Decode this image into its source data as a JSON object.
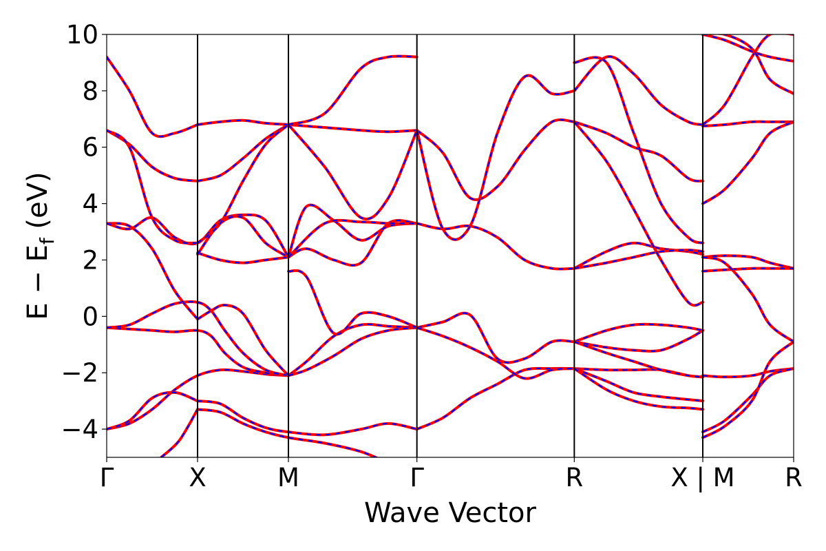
{
  "chart_data": {
    "type": "line",
    "title": "",
    "xlabel": "Wave Vector",
    "ylabel_parts": {
      "main": "E − E",
      "subscript": "f",
      "unit": " (eV)"
    },
    "ylim": [
      -5,
      10
    ],
    "yticks": [
      -4,
      -2,
      0,
      2,
      4,
      6,
      8,
      10
    ],
    "ytick_labels": [
      "−4",
      "−2",
      "0",
      "2",
      "4",
      "6",
      "8",
      "10"
    ],
    "x_ticks": [
      {
        "pos": 0.0,
        "label": "Γ"
      },
      {
        "pos": 1.0,
        "label": "X"
      },
      {
        "pos": 2.0,
        "label": "M"
      },
      {
        "pos": 3.414,
        "label": "Γ"
      },
      {
        "pos": 5.146,
        "label": "R"
      },
      {
        "pos": 6.56,
        "label": "X | M"
      },
      {
        "pos": 7.56,
        "label": "R"
      }
    ],
    "xlim": [
      0,
      7.56
    ],
    "grid": false,
    "colors": {
      "series_a": "#ff0000",
      "series_b": "#0000ff",
      "kpath_lines": "#000000"
    },
    "series": [
      {
        "values_note": "bands",
        "x": [
          0,
          0.25,
          0.5,
          0.75,
          1.0,
          1.25,
          1.5,
          1.75,
          2.0
        ],
        "y": [
          -4.0,
          -3.8,
          -3.3,
          -2.6,
          -2.1,
          -1.9,
          -1.95,
          -2.05,
          -2.1
        ]
      },
      {
        "x": [
          0,
          0.25,
          0.5,
          0.75,
          1.0
        ],
        "y": [
          -4.0,
          -3.7,
          -2.9,
          -2.7,
          -3.0
        ]
      },
      {
        "x": [
          1.0,
          1.25,
          1.5,
          1.75,
          2.0,
          2.4,
          2.8,
          3.1,
          3.414
        ],
        "y": [
          -3.0,
          -3.1,
          -3.6,
          -3.95,
          -4.1,
          -4.2,
          -4.0,
          -3.8,
          -4.0
        ]
      },
      {
        "x": [
          1.0,
          1.25,
          1.5,
          1.75,
          2.0,
          2.4,
          2.8,
          3.1,
          3.414
        ],
        "y": [
          -3.3,
          -3.4,
          -3.8,
          -4.1,
          -4.3,
          -4.5,
          -4.8,
          -5.2,
          -5.6
        ]
      },
      {
        "x": [
          0.6,
          0.8,
          1.0
        ],
        "y": [
          -5.0,
          -4.4,
          -3.3
        ]
      },
      {
        "x": [
          3.414,
          3.7,
          4.0,
          4.3,
          4.6,
          4.9,
          5.146
        ],
        "y": [
          -4.0,
          -3.6,
          -2.9,
          -2.4,
          -1.9,
          -1.85,
          -1.85
        ]
      },
      {
        "x": [
          0,
          0.25,
          0.5,
          0.75,
          1.0,
          1.15,
          1.3,
          1.5,
          1.75,
          2.0
        ],
        "y": [
          -0.4,
          -0.45,
          -0.5,
          -0.55,
          -0.5,
          -0.7,
          -1.3,
          -1.8,
          -2.0,
          -2.1
        ]
      },
      {
        "x": [
          0,
          0.25,
          0.5,
          0.75,
          1.0,
          1.15,
          1.3,
          1.5,
          1.75,
          2.0
        ],
        "y": [
          -0.4,
          -0.3,
          0.1,
          0.45,
          0.5,
          0.2,
          -0.5,
          -1.3,
          -1.9,
          -2.1
        ]
      },
      {
        "x": [
          0,
          0.25,
          0.5,
          0.75,
          1.0
        ],
        "y": [
          3.3,
          3.2,
          2.4,
          0.9,
          -0.1
        ]
      },
      {
        "x": [
          1.0,
          1.15,
          1.3,
          1.5,
          1.75,
          2.0
        ],
        "y": [
          -0.1,
          0.2,
          0.4,
          0.1,
          -1.2,
          -2.1
        ]
      },
      {
        "x": [
          2.0,
          2.2,
          2.5,
          2.8,
          3.1,
          3.414
        ],
        "y": [
          -2.1,
          -1.6,
          -0.7,
          -0.3,
          -0.35,
          -0.4
        ]
      },
      {
        "x": [
          2.0,
          2.2,
          2.5,
          2.8,
          3.1,
          3.414
        ],
        "y": [
          -2.1,
          -1.9,
          -1.4,
          -0.8,
          -0.5,
          -0.4
        ]
      },
      {
        "x": [
          2.0,
          2.2,
          2.5,
          2.8,
          3.1,
          3.414
        ],
        "y": [
          1.6,
          1.4,
          -0.6,
          0.1,
          0.0,
          -0.4
        ]
      },
      {
        "x": [
          3.414,
          3.7,
          4.0,
          4.3,
          4.6,
          4.9,
          5.146
        ],
        "y": [
          -0.4,
          -0.2,
          0.05,
          -1.5,
          -1.5,
          -0.9,
          -0.9
        ]
      },
      {
        "x": [
          3.414,
          3.7,
          4.0,
          4.3,
          4.6,
          4.9,
          5.146
        ],
        "y": [
          -0.4,
          -0.7,
          -1.1,
          -1.6,
          -2.2,
          -1.9,
          -1.85
        ]
      },
      {
        "x": [
          5.146,
          5.5,
          5.8,
          6.1,
          6.4,
          6.56
        ],
        "y": [
          -0.9,
          -0.5,
          -0.3,
          -0.3,
          -0.4,
          -0.5
        ]
      },
      {
        "x": [
          5.146,
          5.5,
          5.8,
          6.1,
          6.4,
          6.56
        ],
        "y": [
          -0.9,
          -1.1,
          -1.2,
          -1.2,
          -0.8,
          -0.5
        ]
      },
      {
        "x": [
          5.146,
          5.5,
          5.8,
          6.1,
          6.4,
          6.56
        ],
        "y": [
          -1.85,
          -1.9,
          -1.9,
          -1.9,
          -2.1,
          -2.15
        ]
      },
      {
        "x": [
          5.146,
          5.5,
          5.8,
          6.1,
          6.4,
          6.56
        ],
        "y": [
          -1.85,
          -2.3,
          -2.7,
          -2.85,
          -2.95,
          -3.0
        ]
      },
      {
        "x": [
          5.146,
          5.5,
          5.8,
          6.1,
          6.4,
          6.56
        ],
        "y": [
          -1.85,
          -2.6,
          -3.0,
          -3.2,
          -3.25,
          -3.3
        ]
      },
      {
        "x": [
          5.146,
          5.5,
          5.8,
          6.1,
          6.4,
          6.56
        ],
        "y": [
          -0.9,
          -1.3,
          -1.6,
          -1.9,
          -2.1,
          -2.15
        ]
      },
      {
        "x": [
          0,
          0.25,
          0.5,
          0.75,
          1.0,
          1.25,
          1.5,
          1.75,
          2.0
        ],
        "y": [
          3.3,
          3.1,
          3.5,
          2.8,
          2.6,
          3.4,
          3.6,
          3.4,
          2.1
        ]
      },
      {
        "x": [
          1.0,
          1.25,
          1.5,
          1.75,
          2.0
        ],
        "y": [
          2.25,
          2.0,
          1.9,
          2.0,
          2.1
        ]
      },
      {
        "x": [
          1.0,
          1.25,
          1.5,
          1.75,
          2.0
        ],
        "y": [
          2.2,
          3.3,
          3.5,
          2.6,
          2.1
        ]
      },
      {
        "x": [
          2.0,
          2.2,
          2.5,
          2.8,
          3.1,
          3.414
        ],
        "y": [
          2.1,
          2.4,
          2.0,
          1.9,
          3.3,
          3.3
        ]
      },
      {
        "x": [
          2.0,
          2.2,
          2.5,
          2.8,
          3.1,
          3.414
        ],
        "y": [
          2.1,
          3.9,
          3.4,
          2.7,
          3.2,
          3.3
        ]
      },
      {
        "x": [
          2.0,
          2.4,
          2.8,
          3.1,
          3.414
        ],
        "y": [
          2.1,
          3.3,
          3.35,
          3.3,
          3.3
        ]
      },
      {
        "x": [
          3.414,
          3.7,
          4.0,
          4.3,
          4.6,
          4.9,
          5.146
        ],
        "y": [
          3.3,
          3.1,
          3.2,
          2.8,
          2.0,
          1.7,
          1.7
        ]
      },
      {
        "x": [
          5.146,
          5.5,
          5.8,
          6.1,
          6.4,
          6.56
        ],
        "y": [
          1.7,
          2.3,
          2.6,
          2.4,
          2.3,
          2.2
        ]
      },
      {
        "x": [
          5.146,
          5.5,
          5.8,
          6.1,
          6.4,
          6.56
        ],
        "y": [
          1.7,
          1.9,
          2.1,
          2.3,
          2.35,
          2.3
        ]
      },
      {
        "x": [
          0,
          0.25,
          0.5,
          0.75,
          1.0
        ],
        "y": [
          6.6,
          6.1,
          5.3,
          4.9,
          4.8
        ]
      },
      {
        "x": [
          0,
          0.25,
          0.5,
          0.75,
          1.0
        ],
        "y": [
          6.6,
          6.0,
          3.5,
          2.7,
          2.6
        ]
      },
      {
        "x": [
          1.0,
          1.25,
          1.5,
          1.75,
          2.0
        ],
        "y": [
          4.8,
          5.0,
          5.6,
          6.3,
          6.8
        ]
      },
      {
        "x": [
          1.0,
          1.25,
          1.5,
          1.75,
          2.0
        ],
        "y": [
          2.6,
          3.3,
          4.8,
          6.1,
          6.8
        ]
      },
      {
        "x": [
          0,
          0.25,
          0.5,
          0.75,
          1.0
        ],
        "y": [
          9.2,
          8.0,
          6.5,
          6.5,
          6.8
        ]
      },
      {
        "x": [
          1.0,
          1.25,
          1.5,
          1.75,
          2.0
        ],
        "y": [
          6.8,
          6.9,
          6.95,
          6.85,
          6.8
        ]
      },
      {
        "x": [
          2.0,
          2.4,
          2.8,
          3.1,
          3.414
        ],
        "y": [
          6.8,
          6.7,
          6.6,
          6.55,
          6.6
        ]
      },
      {
        "x": [
          2.0,
          2.4,
          2.8,
          3.1,
          3.414
        ],
        "y": [
          6.8,
          5.3,
          3.5,
          4.2,
          6.6
        ]
      },
      {
        "x": [
          2.0,
          2.4,
          2.8,
          3.1,
          3.414
        ],
        "y": [
          6.8,
          7.2,
          8.8,
          9.2,
          9.2
        ]
      },
      {
        "x": [
          3.414,
          3.7,
          4.0,
          4.3,
          4.6,
          4.9,
          5.146
        ],
        "y": [
          6.6,
          5.8,
          4.2,
          4.6,
          5.9,
          6.9,
          6.9
        ]
      },
      {
        "x": [
          3.414,
          3.7,
          4.0,
          4.3,
          4.6,
          4.9,
          5.146
        ],
        "y": [
          6.6,
          3.1,
          3.2,
          6.5,
          8.5,
          7.9,
          8.0
        ]
      },
      {
        "x": [
          5.146,
          5.5,
          5.8,
          6.1,
          6.4,
          6.56
        ],
        "y": [
          6.9,
          6.5,
          6.0,
          5.7,
          4.9,
          4.8
        ]
      },
      {
        "x": [
          5.146,
          5.5,
          5.8,
          6.1,
          6.4,
          6.56
        ],
        "y": [
          6.9,
          5.5,
          3.8,
          2.0,
          0.5,
          0.5
        ]
      },
      {
        "x": [
          5.146,
          5.5,
          5.8,
          6.1,
          6.4,
          6.56
        ],
        "y": [
          8.0,
          9.2,
          8.6,
          7.5,
          6.9,
          6.8
        ]
      },
      {
        "x": [
          5.146,
          5.5,
          5.8,
          6.1,
          6.4,
          6.56
        ],
        "y": [
          9.0,
          9.0,
          6.5,
          4.0,
          2.8,
          2.6
        ]
      },
      {
        "x": [
          6.56,
          6.8,
          7.1,
          7.3,
          7.56
        ],
        "y": [
          6.75,
          6.8,
          6.9,
          6.9,
          6.9
        ]
      },
      {
        "x": [
          6.56,
          6.8,
          7.1,
          7.3,
          7.56
        ],
        "y": [
          4.0,
          4.5,
          5.6,
          6.5,
          6.9
        ]
      },
      {
        "x": [
          6.56,
          6.8,
          7.1,
          7.3,
          7.56
        ],
        "y": [
          6.8,
          7.5,
          9.2,
          10.0,
          10.0
        ]
      },
      {
        "x": [
          6.56,
          6.8,
          7.1,
          7.3,
          7.56
        ],
        "y": [
          2.1,
          2.15,
          2.1,
          1.9,
          1.7
        ]
      },
      {
        "x": [
          6.56,
          6.8,
          7.1,
          7.3,
          7.56
        ],
        "y": [
          1.6,
          1.65,
          1.7,
          1.7,
          1.7
        ]
      },
      {
        "x": [
          6.56,
          6.8,
          7.1,
          7.3,
          7.56
        ],
        "y": [
          2.1,
          1.9,
          0.8,
          -0.3,
          -0.9
        ]
      },
      {
        "x": [
          6.56,
          6.8,
          7.1,
          7.3,
          7.56
        ],
        "y": [
          -2.1,
          -2.15,
          -2.1,
          -1.95,
          -1.85
        ]
      },
      {
        "x": [
          6.56,
          6.8,
          7.1,
          7.3,
          7.56
        ],
        "y": [
          -4.1,
          -3.7,
          -2.8,
          -2.1,
          -1.85
        ]
      },
      {
        "x": [
          6.56,
          6.8,
          7.1,
          7.3,
          7.56
        ],
        "y": [
          -4.3,
          -3.9,
          -3.0,
          -1.6,
          -0.9
        ]
      },
      {
        "x": [
          6.56,
          6.8,
          7.1,
          7.3,
          7.56
        ],
        "y": [
          10.0,
          9.8,
          9.4,
          9.2,
          9.05
        ]
      },
      {
        "x": [
          6.56,
          6.8,
          7.1,
          7.3,
          7.56
        ],
        "y": [
          10.0,
          10.0,
          9.5,
          8.4,
          7.9
        ]
      }
    ]
  }
}
